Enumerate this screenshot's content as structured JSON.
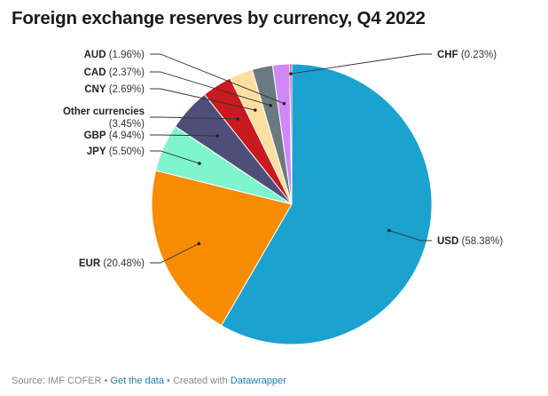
{
  "title": "Foreign exchange reserves by currency, Q4 2022",
  "chart_data": {
    "type": "pie",
    "title": "Foreign exchange reserves by currency, Q4 2022",
    "slices": [
      {
        "name": "USD",
        "value": 58.38,
        "label": "(58.38%)",
        "color": "#1ba2cf"
      },
      {
        "name": "EUR",
        "value": 20.48,
        "label": "(20.48%)",
        "color": "#f78c00"
      },
      {
        "name": "JPY",
        "value": 5.5,
        "label": "(5.50%)",
        "color": "#7ff5cd"
      },
      {
        "name": "GBP",
        "value": 4.94,
        "label": "(4.94%)",
        "color": "#4e4f79"
      },
      {
        "name": "Other currencies",
        "value": 3.45,
        "label": "(3.45%)",
        "color": "#c81a1f"
      },
      {
        "name": "CNY",
        "value": 2.69,
        "label": "(2.69%)",
        "color": "#fddf9f"
      },
      {
        "name": "CAD",
        "value": 2.37,
        "label": "(2.37%)",
        "color": "#6b7a80"
      },
      {
        "name": "AUD",
        "value": 1.96,
        "label": "(1.96%)",
        "color": "#d187f7"
      },
      {
        "name": "CHF",
        "value": 0.23,
        "label": "(0.23%)",
        "color": "#b32c8b"
      }
    ]
  },
  "footer": {
    "source": "Source: IMF COFER",
    "sep1": " • ",
    "get_data": "Get the data",
    "sep2": " • Created with ",
    "tool": "Datawrapper"
  }
}
